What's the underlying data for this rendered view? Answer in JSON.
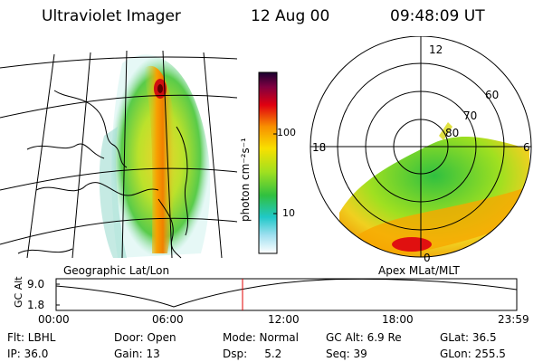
{
  "header": {
    "title": "Ultraviolet Imager",
    "date": "12 Aug 00",
    "time": "09:48:09 UT"
  },
  "geo_panel": {
    "label": "Geographic Lat/Lon"
  },
  "colorbar": {
    "unit_label": "photon cm⁻²s⁻¹",
    "ticks": [
      "100",
      "10"
    ]
  },
  "polar_panel": {
    "label": "Apex MLat/MLT",
    "hour_labels": [
      "12",
      "18",
      "6",
      "0"
    ],
    "lat_labels": [
      "60",
      "70",
      "80"
    ]
  },
  "altitude_plot": {
    "ylabel": "GC Alt",
    "yticks": [
      "9.0",
      "1.8"
    ],
    "xticks": [
      "00:00",
      "06:00",
      "12:00",
      "18:00",
      "23:59"
    ]
  },
  "info": {
    "row1": [
      "Flt: LBHL",
      "Door: Open",
      "Mode: Normal",
      "GC Alt: 6.9 Re",
      "GLat:  36.5"
    ],
    "row2": [
      "IP: 36.0",
      "Gain: 13",
      "Dsp:     5.2",
      "Seq: 39",
      "GLon: 255.5"
    ]
  }
}
